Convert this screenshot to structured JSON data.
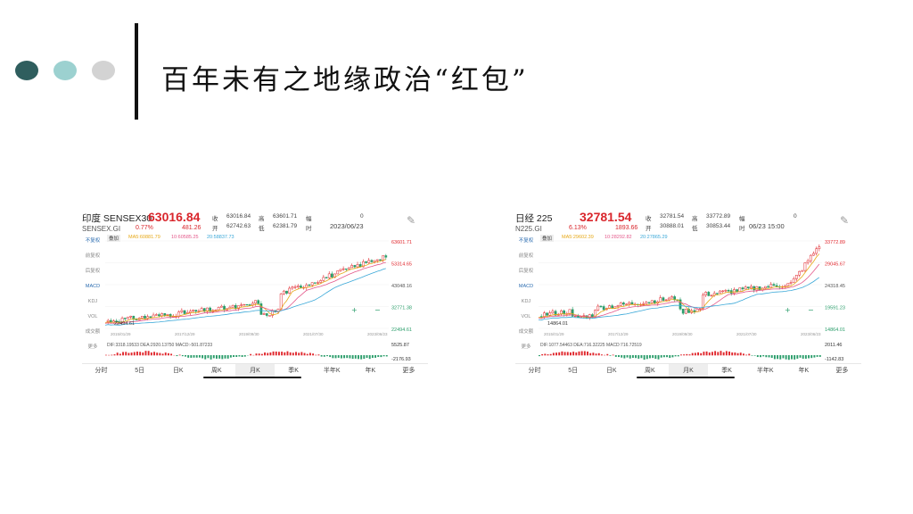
{
  "slide": {
    "title": "百年未有之地缘政治“红包”",
    "dot_colors": [
      "#2f5e5e",
      "#9cd1d0",
      "#d3d3d3"
    ]
  },
  "panels": [
    {
      "name": "印度 SENSEX30",
      "price": "63016.84",
      "code": "SENSEX.GI",
      "pct": "0.77%",
      "chg": "481.26",
      "q": {
        "shou_label": "收",
        "shou": "63016.84",
        "gao_label": "高",
        "gao": "63601.71",
        "huan_label": "幅",
        "huan": "0",
        "kai_label": "开",
        "kai": "62742.63",
        "di_label": "低",
        "di": "62381.79",
        "shi_label": "时",
        "shi": "2023/06/23"
      },
      "ma_label": "叠加",
      "ma5": "MA5:60881.79",
      "ma10": "10:60585.25",
      "ma20": "20:58837.73",
      "menu": [
        "不复权",
        "前复权",
        "后复权",
        "MACD",
        "KDJ",
        "VOL",
        "成交额",
        "更多"
      ],
      "right_labels": [
        "63601.71",
        "53314.65",
        "43048.16",
        "32771.38",
        "22494.61"
      ],
      "low_label": "22494.61",
      "xlabels": [
        "2015/01/29",
        "2017/12/29",
        "2019/09/30",
        "2021/07/30",
        "2023/06/23"
      ],
      "macd": "DIF:3318.19533 DEA:2920.13750 MACD:-501.87233",
      "macd_right": [
        "5525.87",
        "-2176.93"
      ],
      "tabs": [
        "分时",
        "5日",
        "日K",
        "周K",
        "月K",
        "季K",
        "半年K",
        "年K",
        "更多"
      ]
    },
    {
      "name": "日经 225",
      "price": "32781.54",
      "code": "N225.GI",
      "pct": "6.13%",
      "chg": "1893.66",
      "q": {
        "shou_label": "收",
        "shou": "32781.54",
        "gao_label": "高",
        "gao": "33772.89",
        "huan_label": "幅",
        "huan": "0",
        "kai_label": "开",
        "kai": "30888.01",
        "di_label": "低",
        "di": "30853.44",
        "shi_label": "时",
        "shi": "06/23 15:00"
      },
      "ma_label": "叠加",
      "ma5": "MA5:29602.39",
      "ma10": "10:28292.82",
      "ma20": "20:27865.29",
      "menu": [
        "不复权",
        "前复权",
        "后复权",
        "MACD",
        "KDJ",
        "VOL",
        "成交额",
        "更多"
      ],
      "right_labels": [
        "33772.89",
        "29045.67",
        "24318.45",
        "19591.23",
        "14864.01"
      ],
      "low_label": "14864.01",
      "xlabels": [
        "2015/01/29",
        "2017/12/29",
        "2019/09/30",
        "2021/07/30",
        "2023/06/23"
      ],
      "macd": "DIF:1077.54463 DEA:716.32225 MACD:716.72519",
      "macd_right": [
        "2011.46",
        "-1142.83"
      ],
      "tabs": [
        "分时",
        "5日",
        "日K",
        "周K",
        "月K",
        "季K",
        "半年K",
        "年K",
        "更多"
      ]
    }
  ],
  "colors": {
    "up": "#e0262c",
    "down": "#2a9d6a",
    "ma5": "#e6a817",
    "ma10": "#e4588a",
    "ma20": "#3aa8d8",
    "bar": "#2b6cb0"
  }
}
